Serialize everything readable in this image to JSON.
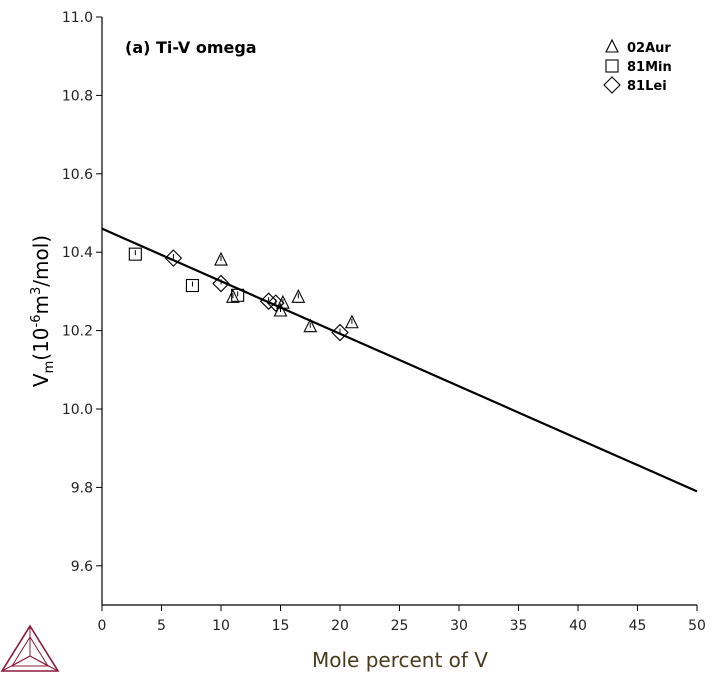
{
  "chart_data": {
    "type": "scatter",
    "title": "(a) Ti-V omega",
    "xlabel": "Mole percent of V",
    "ylabel": {
      "base": "V",
      "sub": "m",
      "open": "(10",
      "exp1": "-6",
      "mid": "m",
      "exp2": "3",
      "close": "/mol)"
    },
    "xlim": [
      0,
      50
    ],
    "ylim": [
      9.5,
      11.0
    ],
    "xticks": [
      0,
      5,
      10,
      15,
      20,
      25,
      30,
      35,
      40,
      45,
      50
    ],
    "yticks": [
      9.6,
      9.8,
      10.0,
      10.2,
      10.4,
      10.6,
      10.8,
      11.0
    ],
    "ytick_labels": [
      "9.6",
      "9.8",
      "10.0",
      "10.2",
      "10.4",
      "10.6",
      "10.8",
      "11.0"
    ],
    "grid": false,
    "legend_position": "top-right",
    "series": [
      {
        "name": "02Aur",
        "marker": "triangle",
        "points": [
          [
            10.0,
            10.38
          ],
          [
            11.0,
            10.285
          ],
          [
            15.0,
            10.25
          ],
          [
            15.2,
            10.27
          ],
          [
            16.5,
            10.285
          ],
          [
            17.5,
            10.21
          ],
          [
            21.0,
            10.22
          ]
        ]
      },
      {
        "name": "81Min",
        "marker": "square",
        "points": [
          [
            2.8,
            10.395
          ],
          [
            7.6,
            10.315
          ],
          [
            11.4,
            10.29
          ]
        ]
      },
      {
        "name": "81Lei",
        "marker": "diamond",
        "points": [
          [
            6.0,
            10.385
          ],
          [
            10.0,
            10.32
          ],
          [
            14.0,
            10.275
          ],
          [
            14.6,
            10.27
          ],
          [
            20.0,
            10.195
          ]
        ]
      }
    ],
    "fit_line": {
      "x": [
        0,
        50
      ],
      "y": [
        10.46,
        9.79
      ]
    }
  },
  "logo": {
    "name": "triangle-logo",
    "color": "#8b1a3a"
  }
}
